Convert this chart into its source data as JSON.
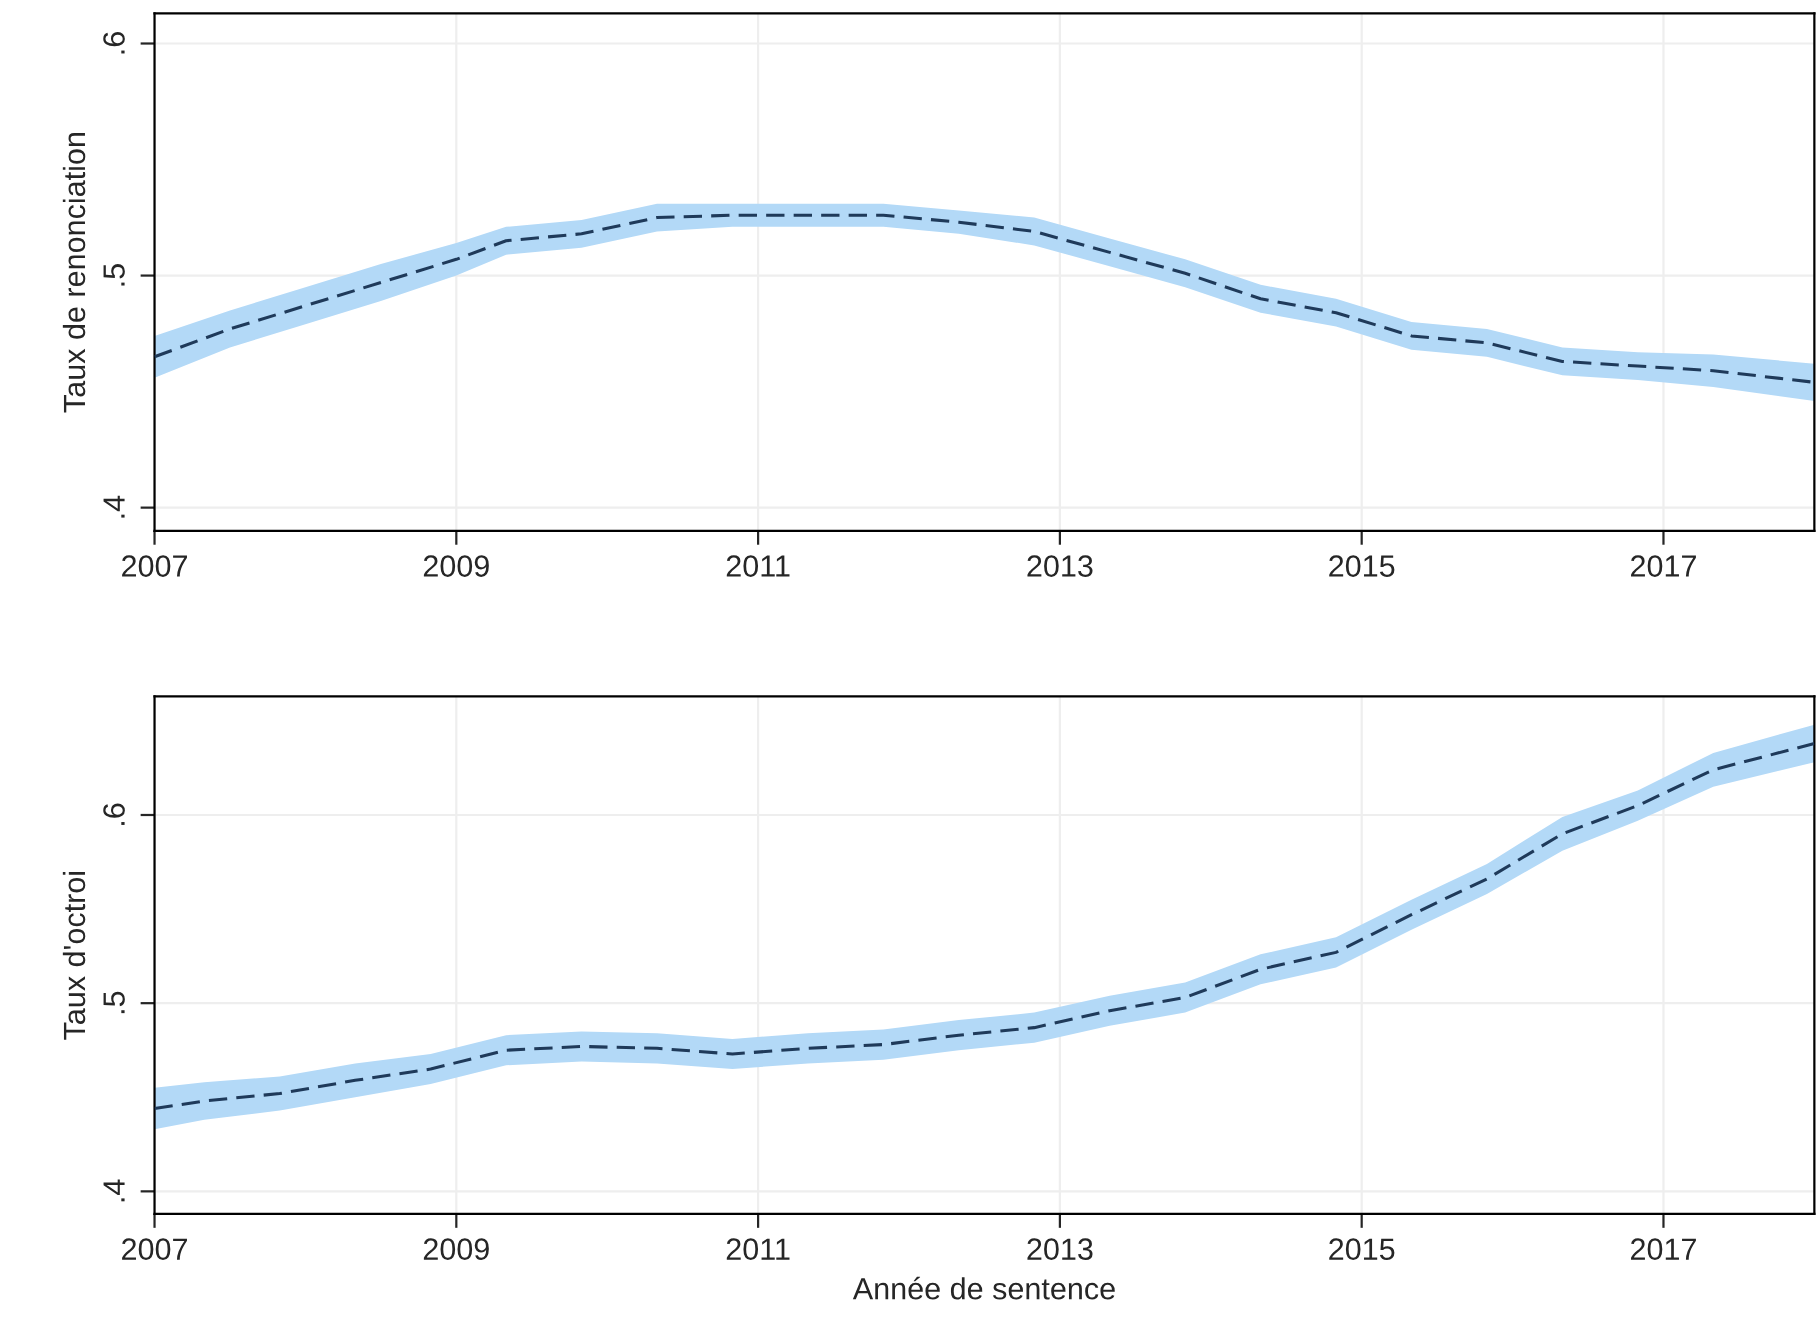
{
  "chart_data": [
    {
      "type": "line",
      "ylabel": "Taux de renonciation",
      "xlim": [
        2007,
        2018
      ],
      "xticks": [
        2007,
        2009,
        2011,
        2013,
        2015,
        2017
      ],
      "ylim": [
        0.39,
        0.613
      ],
      "yticks": [
        {
          "value": 0.4,
          "label": ".4"
        },
        {
          "value": 0.5,
          "label": ".5"
        },
        {
          "value": 0.6,
          "label": ".6"
        }
      ],
      "grid": true,
      "line_style": "dashed",
      "marker": "none",
      "series": [
        {
          "color": "#1f3a5a",
          "x": [
            2007,
            2007.5,
            2008,
            2008.5,
            2009,
            2009.33,
            2009.83,
            2010.33,
            2010.83,
            2011.33,
            2011.83,
            2012.33,
            2012.83,
            2013.33,
            2013.83,
            2014.33,
            2014.83,
            2015.33,
            2015.83,
            2016.33,
            2016.83,
            2017.33,
            2018
          ],
          "values": [
            0.465,
            0.477,
            0.487,
            0.497,
            0.507,
            0.515,
            0.518,
            0.525,
            0.526,
            0.526,
            0.526,
            0.523,
            0.519,
            0.51,
            0.501,
            0.49,
            0.484,
            0.474,
            0.471,
            0.463,
            0.461,
            0.459,
            0.454
          ],
          "lower": [
            0.456,
            0.469,
            0.479,
            0.489,
            0.5,
            0.509,
            0.512,
            0.519,
            0.521,
            0.521,
            0.521,
            0.518,
            0.513,
            0.504,
            0.495,
            0.484,
            0.478,
            0.468,
            0.465,
            0.457,
            0.455,
            0.452,
            0.446
          ],
          "upper": [
            0.474,
            0.485,
            0.495,
            0.505,
            0.514,
            0.521,
            0.524,
            0.531,
            0.531,
            0.531,
            0.531,
            0.528,
            0.525,
            0.516,
            0.507,
            0.496,
            0.49,
            0.48,
            0.477,
            0.469,
            0.467,
            0.466,
            0.462
          ]
        }
      ]
    },
    {
      "type": "line",
      "xlabel": "Année de sentence",
      "ylabel": "Taux d'octroi",
      "xlim": [
        2007,
        2018
      ],
      "xticks": [
        2007,
        2009,
        2011,
        2013,
        2015,
        2017
      ],
      "ylim": [
        0.388,
        0.663
      ],
      "yticks": [
        {
          "value": 0.4,
          "label": ".4"
        },
        {
          "value": 0.5,
          "label": ".5"
        },
        {
          "value": 0.6,
          "label": ".6"
        }
      ],
      "grid": true,
      "line_style": "dashed",
      "marker": "none",
      "series": [
        {
          "color": "#1f3a5a",
          "x": [
            2007,
            2007.33,
            2007.83,
            2008.33,
            2008.83,
            2009.33,
            2009.83,
            2010.33,
            2010.83,
            2011.33,
            2011.83,
            2012.33,
            2012.83,
            2013.33,
            2013.83,
            2014.33,
            2014.83,
            2015.33,
            2015.83,
            2016.33,
            2016.83,
            2017.33,
            2018
          ],
          "values": [
            0.444,
            0.448,
            0.452,
            0.459,
            0.465,
            0.475,
            0.477,
            0.476,
            0.473,
            0.476,
            0.478,
            0.483,
            0.487,
            0.496,
            0.503,
            0.518,
            0.527,
            0.547,
            0.566,
            0.59,
            0.605,
            0.624,
            0.638
          ],
          "lower": [
            0.433,
            0.438,
            0.443,
            0.45,
            0.457,
            0.467,
            0.469,
            0.468,
            0.465,
            0.468,
            0.47,
            0.475,
            0.479,
            0.488,
            0.495,
            0.51,
            0.519,
            0.539,
            0.558,
            0.581,
            0.597,
            0.615,
            0.628
          ],
          "upper": [
            0.455,
            0.458,
            0.461,
            0.468,
            0.473,
            0.483,
            0.485,
            0.484,
            0.481,
            0.484,
            0.486,
            0.491,
            0.495,
            0.504,
            0.511,
            0.526,
            0.535,
            0.555,
            0.574,
            0.599,
            0.613,
            0.633,
            0.648
          ]
        }
      ]
    }
  ]
}
